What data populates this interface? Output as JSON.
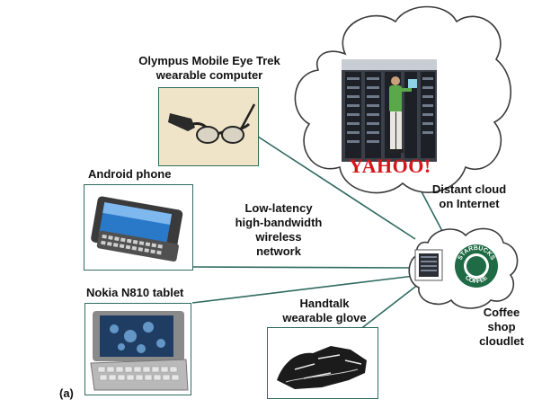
{
  "labels": {
    "eyetrek_line1": "Olympus Mobile Eye Trek",
    "eyetrek_line2": "wearable computer",
    "android": "Android phone",
    "nokia": "Nokia N810 tablet",
    "network_line1": "Low-latency",
    "network_line2": "high-bandwidth",
    "network_line3": "wireless",
    "network_line4": "network",
    "glove_line1": "Handtalk",
    "glove_line2": "wearable glove",
    "cloud_line1": "Distant cloud",
    "cloud_line2": "on Internet",
    "cloudlet_line1": "Coffee",
    "cloudlet_line2": "shop",
    "cloudlet_line3": "cloudlet",
    "figure_tag": "(a)"
  },
  "logos": {
    "yahoo": "YAHOO!",
    "starbucks_top": "STARBUCKS",
    "starbucks_bottom": "COFFEE"
  },
  "colors": {
    "connector": "#2f6a60",
    "photo_border": "#2f6a60",
    "yahoo_red": "#d7141a",
    "starbucks_green": "#1e6b45"
  }
}
